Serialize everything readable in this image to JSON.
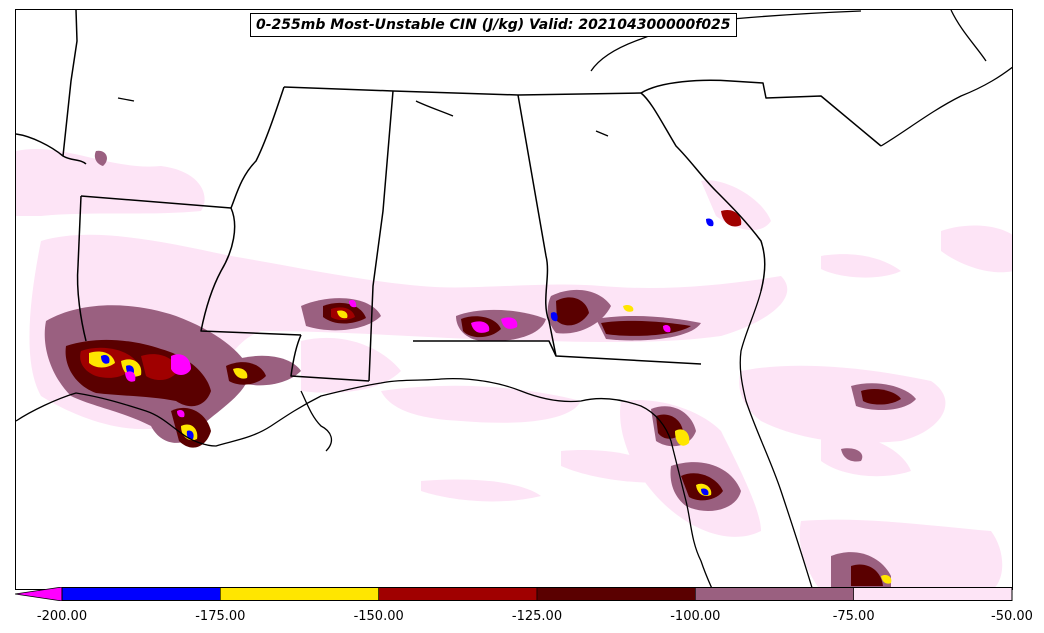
{
  "title": "0-255mb Most-Unstable CIN (J/kg) Valid: 202104300000f025",
  "colorbar": {
    "under_color": "#ff00ff",
    "bins": [
      {
        "from": -200,
        "to": -175,
        "color": "#0000ff"
      },
      {
        "from": -175,
        "to": -150,
        "color": "#ffe600"
      },
      {
        "from": -150,
        "to": -125,
        "color": "#a00000"
      },
      {
        "from": -125,
        "to": -100,
        "color": "#5a0000"
      },
      {
        "from": -100,
        "to": -75,
        "color": "#9a6080"
      },
      {
        "from": -75,
        "to": -50,
        "color": "#fde4f6"
      }
    ],
    "tick_labels": [
      "-200.00",
      "-175.00",
      "-150.00",
      "-125.00",
      "-100.00",
      "-75.00",
      "-50.00"
    ]
  }
}
